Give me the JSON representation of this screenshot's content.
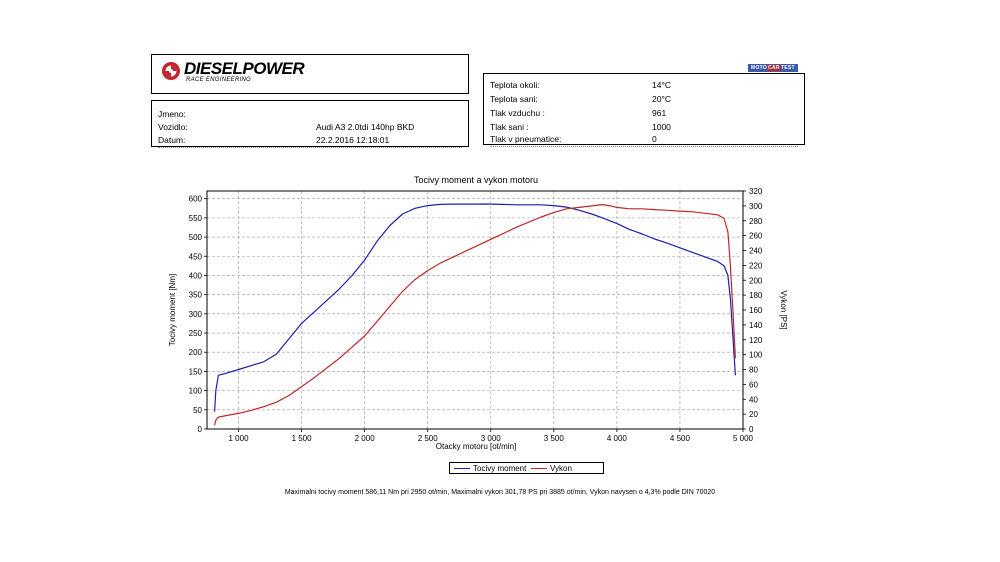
{
  "header": {
    "logo_text": "DIESELPOWER",
    "logo_sub": "RACE ENGINEERING",
    "badge_left": "MOTO",
    "badge_mid": "CAR",
    "badge_right": "TEST"
  },
  "vehicle": {
    "rows": [
      {
        "label": "Jmeno:",
        "value": ""
      },
      {
        "label": "Vozidlo:",
        "value": "Audi A3 2.0tdi 140hp BKD"
      },
      {
        "label": "Datum:",
        "value": "22.2.2016 12:18:01"
      }
    ]
  },
  "conditions": {
    "rows": [
      {
        "label": "Teplota okoli:",
        "value": "14°C"
      },
      {
        "label": "Teplota sani:",
        "value": "20°C"
      },
      {
        "label": "Tlak vzduchu :",
        "value": "961"
      },
      {
        "label": "Tlak sani :",
        "value": "1000"
      },
      {
        "label": "Tlak v pneumatice:",
        "value": "0"
      }
    ]
  },
  "chart_data": {
    "type": "line",
    "title": "Tocivy moment a vykon motoru",
    "xlabel": "Otacky motoru [ot/min]",
    "ylabel_left": "Tocivy moment [Nm]",
    "ylabel_right": "Vykon [PS]",
    "xlim": [
      750,
      5000
    ],
    "ylim_left": [
      0,
      620
    ],
    "ylim_right": [
      0,
      320
    ],
    "x_ticks": [
      1000,
      1500,
      2000,
      2500,
      3000,
      3500,
      4000,
      4500,
      5000
    ],
    "x_tick_labels": [
      "1 000",
      "1 500",
      "2 000",
      "2 500",
      "3 000",
      "3 500",
      "4 000",
      "4 500",
      "5 000"
    ],
    "y_left_ticks": [
      0,
      50,
      100,
      150,
      200,
      250,
      300,
      350,
      400,
      450,
      500,
      550,
      600
    ],
    "y_right_ticks": [
      0,
      20,
      40,
      60,
      80,
      100,
      120,
      140,
      160,
      180,
      200,
      220,
      240,
      260,
      280,
      300,
      320
    ],
    "grid": true,
    "series": [
      {
        "name": "Tocivy moment",
        "axis": "left",
        "color": "#1f1fa8",
        "x": [
          810,
          820,
          840,
          900,
          1000,
          1100,
          1200,
          1300,
          1400,
          1500,
          1600,
          1700,
          1800,
          1900,
          2000,
          2100,
          2200,
          2300,
          2400,
          2500,
          2600,
          2700,
          2800,
          2900,
          2950,
          3000,
          3100,
          3200,
          3300,
          3400,
          3500,
          3600,
          3700,
          3800,
          3900,
          4000,
          4100,
          4200,
          4300,
          4400,
          4500,
          4600,
          4700,
          4800,
          4850,
          4880,
          4900,
          4920,
          4940
        ],
        "y": [
          45,
          100,
          140,
          145,
          155,
          165,
          175,
          195,
          235,
          275,
          305,
          335,
          365,
          400,
          440,
          490,
          530,
          560,
          575,
          582,
          585,
          586,
          586,
          586,
          586.11,
          586,
          585,
          584,
          584,
          584,
          582,
          578,
          570,
          560,
          548,
          535,
          520,
          508,
          495,
          484,
          472,
          460,
          448,
          436,
          425,
          400,
          340,
          240,
          140
        ]
      },
      {
        "name": "Vykon",
        "axis": "right",
        "color": "#c0262d",
        "x": [
          810,
          820,
          840,
          900,
          1000,
          1100,
          1200,
          1300,
          1400,
          1500,
          1600,
          1700,
          1800,
          1900,
          2000,
          2100,
          2200,
          2300,
          2400,
          2500,
          2600,
          2700,
          2800,
          2900,
          3000,
          3100,
          3200,
          3300,
          3400,
          3500,
          3600,
          3700,
          3800,
          3885,
          3950,
          4000,
          4100,
          4200,
          4300,
          4400,
          4500,
          4600,
          4700,
          4800,
          4850,
          4880,
          4900,
          4920,
          4940
        ],
        "y": [
          5,
          12,
          16,
          18,
          21,
          25,
          30,
          36,
          45,
          57,
          69,
          82,
          95,
          110,
          125,
          145,
          165,
          185,
          201,
          213,
          223,
          231,
          239,
          247,
          255,
          263,
          271,
          278,
          285,
          291,
          296,
          298,
          300,
          301.78,
          300,
          298,
          296,
          296,
          295,
          294,
          293,
          292,
          290,
          288,
          283,
          265,
          220,
          160,
          95
        ]
      }
    ]
  },
  "legend": {
    "items": [
      {
        "label": "Tocivy moment",
        "color": "#1f1fa8"
      },
      {
        "label": "Vykon",
        "color": "#c0262d"
      }
    ]
  },
  "footer": {
    "text": "Maximalni tocivy moment 586,11 Nm pri 2950 ot/min,  Maximalni vykon 301,78 PS pri 3885 ot/min,  Vykon navysen o 4,3% podle DIN 70020"
  }
}
